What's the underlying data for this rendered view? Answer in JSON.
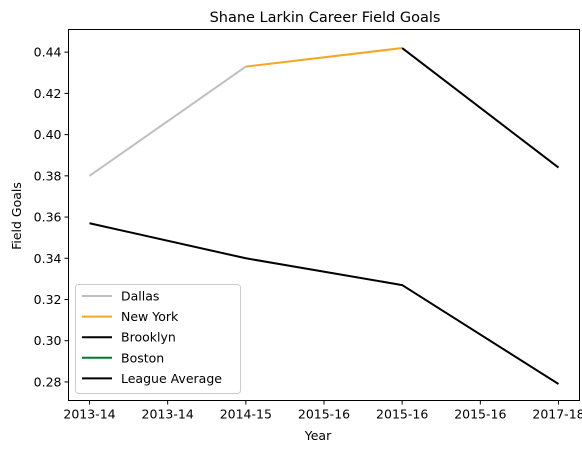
{
  "chart_data": {
    "type": "line",
    "title": "Shane Larkin Career Field Goals",
    "xlabel": "Year",
    "ylabel": "Field Goals",
    "x_tick_labels": [
      "2013-14",
      "2013-14",
      "2014-15",
      "2015-16",
      "2015-16",
      "2015-16",
      "2017-18"
    ],
    "x_positions": [
      0,
      1,
      2,
      3,
      4,
      5,
      6
    ],
    "ylim": [
      0.271,
      0.451
    ],
    "yticks": [
      0.28,
      0.3,
      0.32,
      0.34,
      0.36,
      0.38,
      0.4,
      0.42,
      0.44
    ],
    "ytick_labels": [
      "0.28",
      "0.30",
      "0.32",
      "0.34",
      "0.36",
      "0.38",
      "0.40",
      "0.42",
      "0.44"
    ],
    "grid": false,
    "legend_position": "lower-left",
    "series": [
      {
        "name": "Dallas",
        "color": "#bfbfbf",
        "x": [
          0,
          2
        ],
        "y": [
          0.38,
          0.433
        ]
      },
      {
        "name": "New York",
        "color": "#f5a623",
        "x": [
          2,
          4
        ],
        "y": [
          0.433,
          0.442
        ]
      },
      {
        "name": "Brooklyn",
        "color": "#000000",
        "x": [
          4,
          6
        ],
        "y": [
          0.442,
          0.384
        ]
      },
      {
        "name": "Boston",
        "color": "#007a33",
        "x": [],
        "y": []
      },
      {
        "name": "League Average",
        "color": "#000000",
        "x": [
          0,
          2,
          4,
          6
        ],
        "y": [
          0.357,
          0.34,
          0.327,
          0.279
        ]
      }
    ]
  }
}
